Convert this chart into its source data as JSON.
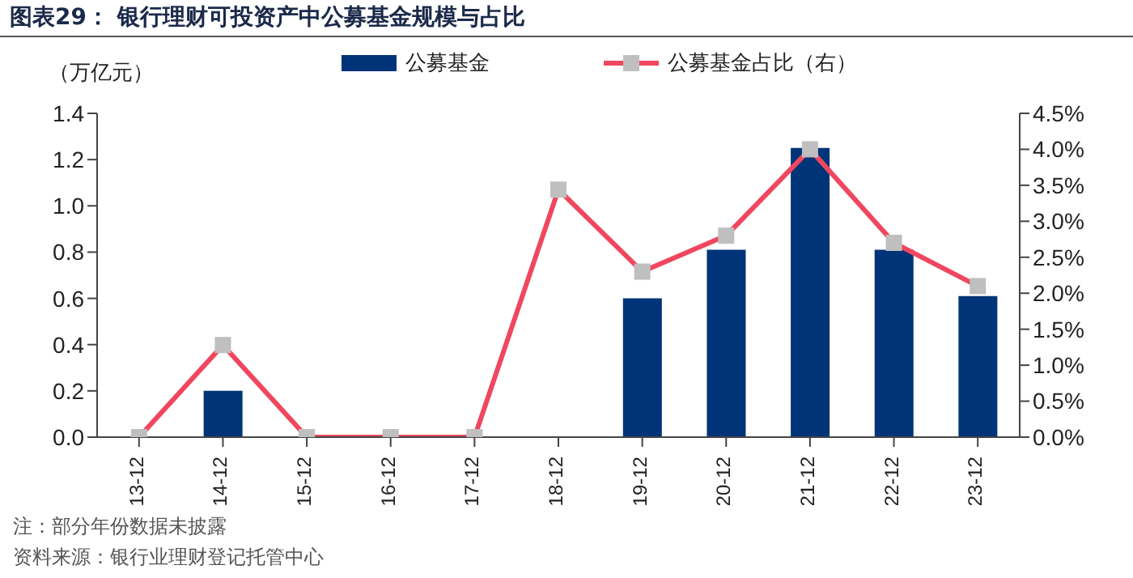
{
  "chart_data": {
    "type": "bar",
    "title": "图表29： 银行理财可投资产中公募基金规模与占比",
    "ylabel": "（万亿元）",
    "categories": [
      "13-12",
      "14-12",
      "15-12",
      "16-12",
      "17-12",
      "18-12",
      "19-12",
      "20-12",
      "21-12",
      "22-12",
      "23-12"
    ],
    "series": [
      {
        "name": "公募基金",
        "color": "#003478",
        "values": [
          null,
          0.2,
          null,
          null,
          null,
          null,
          0.6,
          0.81,
          1.25,
          0.81,
          0.61
        ]
      },
      {
        "name": "公募基金占比（右）",
        "type": "line",
        "axis": "y2",
        "color": "#f0475f",
        "marker": "square",
        "values": [
          0,
          1.28,
          0,
          0,
          0,
          3.44,
          2.3,
          2.8,
          4.0,
          2.7,
          2.1
        ]
      }
    ],
    "ylim": [
      0,
      1.4
    ],
    "yticks": [
      {
        "value": 0,
        "label": "0.0"
      },
      {
        "value": 0.2,
        "label": "0.2"
      },
      {
        "value": 0.4,
        "label": "0.4"
      },
      {
        "value": 0.6,
        "label": "0.6"
      },
      {
        "value": 0.8,
        "label": "0.8"
      },
      {
        "value": 1,
        "label": "1.0"
      },
      {
        "value": 1.2,
        "label": "1.2"
      },
      {
        "value": 1.4,
        "label": "1.4"
      }
    ],
    "y2lim": [
      0,
      4.5
    ],
    "y2ticks": [
      {
        "value": 0,
        "label": "0.0%"
      },
      {
        "value": 0.5,
        "label": "0.5%"
      },
      {
        "value": 1,
        "label": "1.0%"
      },
      {
        "value": 1.5,
        "label": "1.5%"
      },
      {
        "value": 2,
        "label": "2.0%"
      },
      {
        "value": 2.5,
        "label": "2.5%"
      },
      {
        "value": 3,
        "label": "3.0%"
      },
      {
        "value": 3.5,
        "label": "3.5%"
      },
      {
        "value": 4,
        "label": "4.0%"
      },
      {
        "value": 4.5,
        "label": "4.5%"
      }
    ],
    "grid": false,
    "legend": "top",
    "annotations": [
      "注：部分年份数据未披露",
      "资料来源：银行业理财登记托管中心"
    ]
  }
}
